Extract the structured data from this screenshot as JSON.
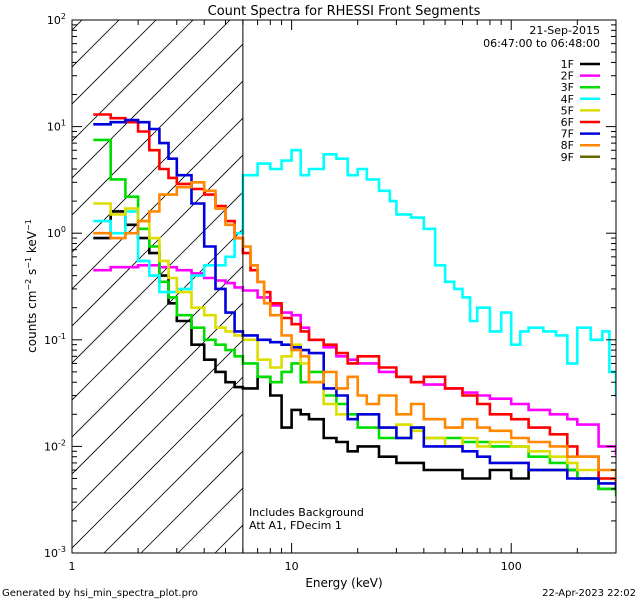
{
  "chart_data": {
    "type": "line",
    "step": true,
    "title": "Count Spectra for RHESSI Front Segments",
    "date": "21-Sep-2015",
    "time_range": "06:47:00 to 06:48:00",
    "xlabel": "Energy (keV)",
    "ylabel": "counts cm⁻² s⁻¹ keV⁻¹",
    "ylabel_parts": {
      "base": "counts cm",
      "exp1": "−2",
      "mid": " s",
      "exp2": "−1",
      "tail": " keV",
      "exp3": "−1"
    },
    "xscale": "log",
    "yscale": "log",
    "xlim": [
      1,
      300
    ],
    "ylim": [
      0.001,
      100
    ],
    "x_ticks": [
      {
        "value": 1,
        "label": "1"
      },
      {
        "value": 10,
        "label": "10"
      },
      {
        "value": 100,
        "label": "100"
      }
    ],
    "y_ticks": [
      {
        "value": 0.001,
        "base": "10",
        "exp": "-3"
      },
      {
        "value": 0.01,
        "base": "10",
        "exp": "-2"
      },
      {
        "value": 0.1,
        "base": "10",
        "exp": "-1"
      },
      {
        "value": 1,
        "base": "10",
        "exp": "0"
      },
      {
        "value": 10,
        "base": "10",
        "exp": "1"
      },
      {
        "value": 100,
        "base": "10",
        "exp": "2"
      }
    ],
    "hatch_limit_kev": 6,
    "annotations": [
      "Includes Background",
      "Att A1, FDecim 1"
    ],
    "footer_left": "Generated by hsi_min_spectra_plot.pro",
    "footer_right": "22-Apr-2023 22:02",
    "legend_position": "top-right",
    "series": [
      {
        "name": "1F",
        "color": "#000000",
        "x": [
          1.25,
          1.5,
          1.75,
          2,
          2.25,
          2.5,
          2.75,
          3,
          3.5,
          4,
          4.5,
          5,
          5.5,
          6,
          7,
          8,
          9,
          10,
          11,
          12,
          14,
          16,
          18,
          20,
          25,
          30,
          35,
          40,
          50,
          60,
          70,
          80,
          100,
          120,
          150,
          180,
          200,
          250,
          300
        ],
        "y": [
          0.9,
          1.6,
          1.2,
          0.9,
          0.65,
          0.4,
          0.22,
          0.15,
          0.09,
          0.065,
          0.05,
          0.04,
          0.036,
          0.035,
          0.045,
          0.03,
          0.015,
          0.022,
          0.02,
          0.018,
          0.012,
          0.011,
          0.009,
          0.01,
          0.008,
          0.007,
          0.007,
          0.006,
          0.006,
          0.005,
          0.005,
          0.006,
          0.005,
          0.006,
          0.006,
          0.006,
          0.005,
          0.004,
          0.004
        ]
      },
      {
        "name": "2F",
        "color": "#ff00ff",
        "x": [
          1.25,
          1.5,
          1.75,
          2,
          2.5,
          3,
          3.5,
          4,
          4.5,
          5,
          5.5,
          6,
          7,
          8,
          9,
          10,
          11,
          12,
          14,
          16,
          18,
          20,
          25,
          30,
          35,
          40,
          50,
          60,
          70,
          80,
          100,
          120,
          150,
          180,
          200,
          250,
          300
        ],
        "y": [
          0.45,
          0.48,
          0.48,
          0.5,
          0.48,
          0.45,
          0.42,
          0.38,
          0.36,
          0.34,
          0.31,
          0.29,
          0.25,
          0.21,
          0.18,
          0.17,
          0.13,
          0.1,
          0.085,
          0.07,
          0.065,
          0.06,
          0.05,
          0.045,
          0.04,
          0.038,
          0.035,
          0.032,
          0.03,
          0.028,
          0.025,
          0.022,
          0.02,
          0.018,
          0.016,
          0.01,
          0.0085
        ]
      },
      {
        "name": "3F",
        "color": "#00dd00",
        "x": [
          1.25,
          1.5,
          1.75,
          2,
          2.25,
          2.5,
          2.75,
          3,
          3.5,
          4,
          4.5,
          5,
          5.5,
          6,
          7,
          8,
          9,
          10,
          11,
          12,
          14,
          16,
          18,
          20,
          25,
          30,
          35,
          40,
          50,
          60,
          70,
          80,
          100,
          120,
          150,
          180,
          200,
          250,
          300
        ],
        "y": [
          7.5,
          3.2,
          2.2,
          1.1,
          0.75,
          0.35,
          0.25,
          0.17,
          0.13,
          0.1,
          0.09,
          0.08,
          0.07,
          0.06,
          0.045,
          0.04,
          0.05,
          0.06,
          0.04,
          0.05,
          0.03,
          0.025,
          0.02,
          0.015,
          0.012,
          0.012,
          0.015,
          0.012,
          0.012,
          0.011,
          0.011,
          0.01,
          0.01,
          0.008,
          0.007,
          0.006,
          0.005,
          0.004,
          0.0035
        ]
      },
      {
        "name": "4F",
        "color": "#00ffff",
        "x": [
          1.25,
          1.5,
          1.75,
          2,
          2.25,
          2.5,
          3,
          3.5,
          4,
          5,
          5.5,
          6,
          7,
          8,
          9,
          10,
          11,
          12,
          14,
          16,
          18,
          20,
          22,
          25,
          28,
          30,
          35,
          40,
          45,
          50,
          55,
          60,
          65,
          70,
          80,
          90,
          100,
          110,
          120,
          140,
          160,
          180,
          200,
          230,
          260,
          280,
          300
        ],
        "y": [
          1.3,
          1.0,
          1.6,
          0.55,
          0.4,
          0.28,
          0.3,
          0.4,
          0.5,
          0.6,
          1.0,
          3.5,
          4.5,
          4.0,
          4.8,
          6.0,
          3.5,
          4.0,
          5.5,
          5.0,
          3.5,
          4.0,
          3.2,
          2.5,
          2.0,
          1.5,
          1.4,
          1.1,
          0.5,
          0.35,
          0.3,
          0.25,
          0.15,
          0.2,
          0.12,
          0.18,
          0.09,
          0.12,
          0.13,
          0.12,
          0.11,
          0.06,
          0.13,
          0.1,
          0.12,
          0.05,
          0.03
        ]
      },
      {
        "name": "5F",
        "color": "#dddd00",
        "x": [
          1.25,
          1.5,
          1.75,
          2,
          2.25,
          2.5,
          2.75,
          3,
          3.5,
          4,
          4.5,
          5,
          5.5,
          6,
          7,
          8,
          9,
          10,
          11,
          12,
          14,
          16,
          18,
          20,
          25,
          30,
          35,
          40,
          50,
          60,
          70,
          80,
          100,
          120,
          150,
          180,
          200,
          250,
          300
        ],
        "y": [
          1.9,
          1.5,
          1.7,
          1.3,
          0.9,
          0.55,
          0.38,
          0.28,
          0.2,
          0.17,
          0.13,
          0.12,
          0.11,
          0.1,
          0.065,
          0.055,
          0.07,
          0.09,
          0.06,
          0.04,
          0.025,
          0.02,
          0.018,
          0.02,
          0.015,
          0.016,
          0.014,
          0.012,
          0.01,
          0.012,
          0.01,
          0.011,
          0.01,
          0.009,
          0.008,
          0.007,
          0.006,
          0.005,
          0.0045
        ]
      },
      {
        "name": "6F",
        "color": "#ff0000",
        "x": [
          1.25,
          1.5,
          1.75,
          2,
          2.25,
          2.5,
          2.75,
          3,
          3.5,
          4,
          4.5,
          5,
          5.5,
          6,
          6.5,
          7,
          7.5,
          8,
          9,
          10,
          11,
          12,
          14,
          16,
          18,
          20,
          25,
          30,
          35,
          40,
          50,
          60,
          70,
          80,
          100,
          120,
          150,
          180,
          200,
          250,
          300
        ],
        "y": [
          13,
          12,
          11,
          9,
          6,
          4,
          3.3,
          2.9,
          2.6,
          2.3,
          1.8,
          1.3,
          0.9,
          0.65,
          0.45,
          0.35,
          0.28,
          0.22,
          0.16,
          0.14,
          0.12,
          0.1,
          0.09,
          0.075,
          0.06,
          0.07,
          0.055,
          0.045,
          0.04,
          0.045,
          0.035,
          0.03,
          0.025,
          0.02,
          0.018,
          0.015,
          0.013,
          0.01,
          0.008,
          0.005,
          0.004
        ]
      },
      {
        "name": "7F",
        "color": "#0000dd",
        "x": [
          1.25,
          1.5,
          1.75,
          2,
          2.25,
          2.5,
          2.75,
          3,
          3.5,
          4,
          4.5,
          5,
          5.5,
          6,
          7,
          8,
          9,
          10,
          11,
          12,
          14,
          16,
          18,
          20,
          25,
          30,
          35,
          40,
          50,
          60,
          70,
          80,
          100,
          120,
          150,
          180,
          200,
          250,
          300
        ],
        "y": [
          10.5,
          11,
          11.5,
          11,
          9.5,
          7,
          5,
          3.5,
          1.9,
          0.75,
          0.3,
          0.18,
          0.12,
          0.11,
          0.1,
          0.095,
          0.09,
          0.085,
          0.08,
          0.075,
          0.035,
          0.03,
          0.018,
          0.02,
          0.015,
          0.012,
          0.015,
          0.01,
          0.01,
          0.009,
          0.008,
          0.007,
          0.007,
          0.006,
          0.006,
          0.005,
          0.005,
          0.0045,
          0.004
        ]
      },
      {
        "name": "8F",
        "color": "#ff8800",
        "x": [
          1.25,
          1.5,
          1.75,
          2,
          2.25,
          2.5,
          3,
          3.5,
          4,
          4.5,
          5,
          5.5,
          6,
          6.5,
          7,
          7.5,
          8,
          9,
          10,
          11,
          12,
          14,
          16,
          18,
          20,
          22,
          25,
          30,
          35,
          40,
          50,
          60,
          70,
          80,
          100,
          120,
          150,
          180,
          200,
          250,
          300
        ],
        "y": [
          1.0,
          0.9,
          1.0,
          1.3,
          1.6,
          2.3,
          2.7,
          3.0,
          2.5,
          1.7,
          1.2,
          0.9,
          0.75,
          0.5,
          0.35,
          0.22,
          0.17,
          0.11,
          0.08,
          0.07,
          0.04,
          0.05,
          0.035,
          0.045,
          0.03,
          0.025,
          0.03,
          0.02,
          0.025,
          0.018,
          0.015,
          0.018,
          0.015,
          0.014,
          0.012,
          0.011,
          0.01,
          0.008,
          0.008,
          0.006,
          0.005
        ]
      },
      {
        "name": "9F",
        "color": "#666600",
        "x": [],
        "y": []
      }
    ]
  }
}
